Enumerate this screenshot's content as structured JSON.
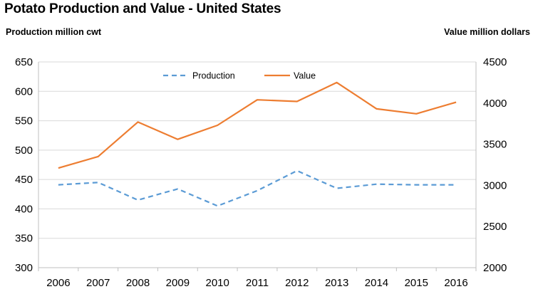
{
  "chart_data": {
    "type": "line",
    "title": "Potato Production and Value - United States",
    "y_left_label": "Production million cwt",
    "y_right_label": "Value million dollars",
    "categories": [
      "2006",
      "2007",
      "2008",
      "2009",
      "2010",
      "2011",
      "2012",
      "2013",
      "2014",
      "2015",
      "2016"
    ],
    "y_left_range": [
      300,
      650
    ],
    "y_left_ticks": [
      300,
      350,
      400,
      450,
      500,
      550,
      600,
      650
    ],
    "y_right_range": [
      2000,
      4500
    ],
    "y_right_ticks": [
      2000,
      2500,
      3000,
      3500,
      4000,
      4500
    ],
    "grid": true,
    "legend_position": "top-center",
    "series": [
      {
        "name": "Production",
        "axis": "left",
        "style": "dashed",
        "color": "#5B9BD5",
        "values": [
          441,
          445,
          415,
          434,
          405,
          431,
          465,
          435,
          442,
          441,
          441
        ]
      },
      {
        "name": "Value",
        "axis": "right",
        "style": "solid",
        "color": "#ED7D31",
        "values": [
          3210,
          3350,
          3770,
          3560,
          3730,
          4040,
          4020,
          4250,
          3930,
          3870,
          4010
        ]
      }
    ]
  }
}
